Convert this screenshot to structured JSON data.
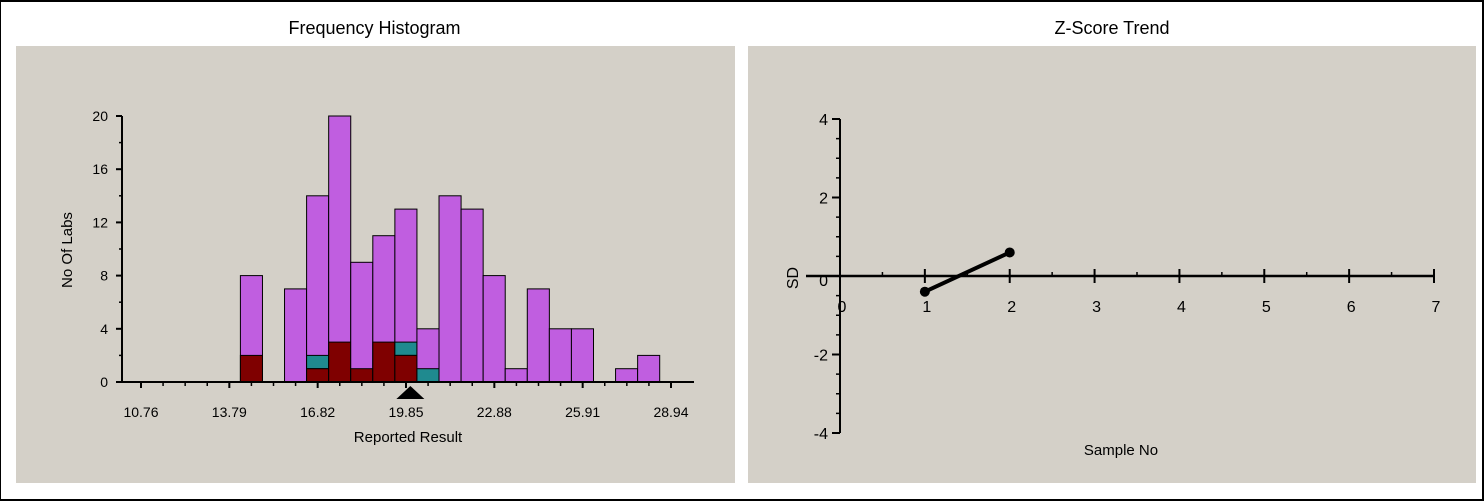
{
  "colors": {
    "plot_bg": "#d4d0c8",
    "bar_total": "#c05ee0",
    "bar_flag_teal": "#1f8a8f",
    "bar_flag_red": "#7f0000",
    "axis": "#000000"
  },
  "chart_data": [
    {
      "type": "bar",
      "title": "Frequency Histogram",
      "xlabel": "Reported Result",
      "ylabel": "No Of Labs",
      "xlim": [
        10.76,
        28.94
      ],
      "ylim": [
        0,
        20
      ],
      "yticks": [
        0,
        4,
        8,
        12,
        16,
        20
      ],
      "xticks": [
        "10.76",
        "13.79",
        "16.82",
        "19.85",
        "22.88",
        "25.91",
        "28.94"
      ],
      "bin_width": 0.757,
      "bins": [
        {
          "x": 14.548,
          "total": 8,
          "teal": 0,
          "red": 2
        },
        {
          "x": 16.062,
          "total": 7,
          "teal": 0,
          "red": 0
        },
        {
          "x": 16.819,
          "total": 14,
          "teal": 1,
          "red": 1
        },
        {
          "x": 17.576,
          "total": 20,
          "teal": 0,
          "red": 3
        },
        {
          "x": 18.333,
          "total": 9,
          "teal": 0,
          "red": 1
        },
        {
          "x": 19.09,
          "total": 11,
          "teal": 0,
          "red": 3
        },
        {
          "x": 19.847,
          "total": 13,
          "teal": 1,
          "red": 2
        },
        {
          "x": 20.604,
          "total": 4,
          "teal": 1,
          "red": 0
        },
        {
          "x": 21.361,
          "total": 14,
          "teal": 0,
          "red": 0
        },
        {
          "x": 22.118,
          "total": 13,
          "teal": 0,
          "red": 0
        },
        {
          "x": 22.875,
          "total": 8,
          "teal": 0,
          "red": 0
        },
        {
          "x": 23.632,
          "total": 1,
          "teal": 0,
          "red": 0
        },
        {
          "x": 24.389,
          "total": 7,
          "teal": 0,
          "red": 0
        },
        {
          "x": 25.146,
          "total": 4,
          "teal": 0,
          "red": 0
        },
        {
          "x": 25.903,
          "total": 4,
          "teal": 0,
          "red": 0
        },
        {
          "x": 27.417,
          "total": 1,
          "teal": 0,
          "red": 0
        },
        {
          "x": 28.174,
          "total": 2,
          "teal": 0,
          "red": 0
        }
      ],
      "marker_x": 20.0,
      "grid": false
    },
    {
      "type": "line",
      "title": "Z-Score Trend",
      "xlabel": "Sample No",
      "ylabel": "SD",
      "xlim": [
        0,
        7
      ],
      "ylim": [
        -4,
        4
      ],
      "xticks": [
        "0",
        "1",
        "2",
        "3",
        "4",
        "5",
        "6",
        "7"
      ],
      "yticks": [
        "4",
        "2",
        "0",
        "-2",
        "-4"
      ],
      "series": [
        {
          "x": [
            1,
            2
          ],
          "y": [
            -0.4,
            0.6
          ]
        }
      ],
      "grid": false
    }
  ]
}
